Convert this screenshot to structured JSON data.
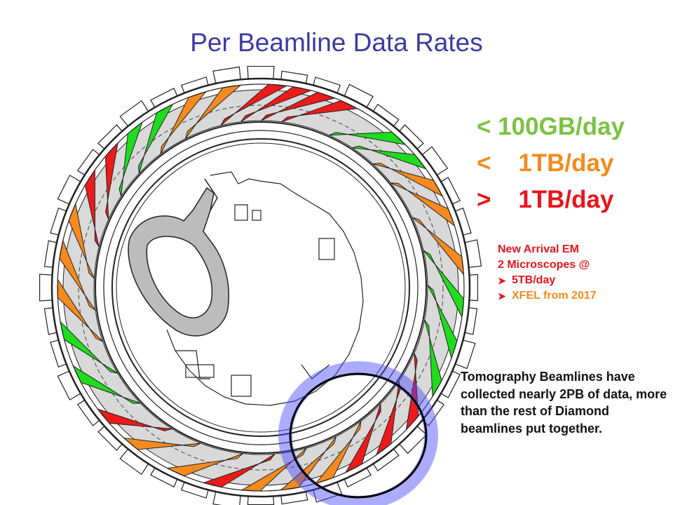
{
  "title": "Per Beamline Data Rates",
  "legend": [
    {
      "text": "< 100GB/day",
      "color": "#7cc242",
      "category": "green"
    },
    {
      "text": "<    1TB/day",
      "color": "#f08c1e",
      "category": "orange"
    },
    {
      "text": ">    1TB/day",
      "color": "#e8141b",
      "category": "red"
    }
  ],
  "arrival": {
    "line1": "New Arrival EM",
    "line2": "2 Microscopes @",
    "bullets": [
      "5TB/day",
      "XFEL from 2017"
    ]
  },
  "tomography_note": "Tomography Beamlines have collected nearly 2PB of data, more than the rest of Diamond beamlines put together.",
  "colors": {
    "title": "#3b3b9f",
    "ring_fill": "#d9d9d9",
    "outline": "#222222",
    "highlight_glow": "#3b3bff"
  },
  "beamlines": [
    {
      "color": "red"
    },
    {
      "color": "red"
    },
    {
      "color": "red"
    },
    {
      "color": "red"
    },
    {
      "color": "green"
    },
    {
      "color": "green"
    },
    {
      "color": "orange"
    },
    {
      "color": "orange"
    },
    {
      "color": "orange"
    },
    {
      "color": "green"
    },
    {
      "color": "green"
    },
    {
      "color": "green"
    },
    {
      "color": "red"
    },
    {
      "color": "red"
    },
    {
      "color": "red"
    },
    {
      "color": "orange"
    },
    {
      "color": "orange"
    },
    {
      "color": "orange"
    },
    {
      "color": "red"
    },
    {
      "color": "orange"
    },
    {
      "color": "orange"
    },
    {
      "color": "red"
    },
    {
      "color": "green"
    },
    {
      "color": "green"
    },
    {
      "color": "orange"
    },
    {
      "color": "orange"
    },
    {
      "color": "orange"
    },
    {
      "color": "red"
    },
    {
      "color": "red"
    },
    {
      "color": "green"
    },
    {
      "color": "green"
    },
    {
      "color": "orange"
    },
    {
      "color": "orange"
    }
  ]
}
